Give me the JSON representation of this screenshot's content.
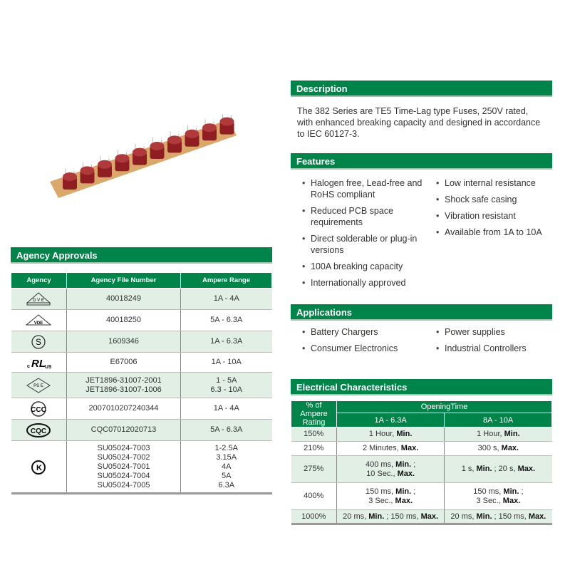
{
  "product_image": {
    "alt": "fuses on tape"
  },
  "description": {
    "title": "Description",
    "text": "The 382 Series are TE5 Time-Lag type Fuses, 250V rated, with enhanced breaking capacity and designed in accordance to IEC 60127-3."
  },
  "features": {
    "title": "Features",
    "col1": [
      "Halogen free, Lead-free and RoHS compliant",
      "Reduced PCB space requirements",
      "Direct solderable or plug-in versions",
      "100A breaking capacity",
      "Internationally approved"
    ],
    "col2": [
      "Low internal resistance",
      "Shock safe casing",
      "Vibration resistant",
      "Available from 1A to 10A"
    ]
  },
  "applications": {
    "title": "Applications",
    "col1": [
      "Battery Chargers",
      "Consumer Electronics"
    ],
    "col2": [
      "Power supplies",
      "Industrial Controllers"
    ]
  },
  "agency": {
    "title": "Agency Approvals",
    "headers": [
      "Agency",
      "Agency File Number",
      "Ampere Range"
    ],
    "rows": [
      {
        "icon": "vde-triangle-icon",
        "file": "40018249",
        "range": "1A - 4A"
      },
      {
        "icon": "vde-logo-icon",
        "file": "40018250",
        "range": "5A - 6.3A"
      },
      {
        "icon": "semko-s-icon",
        "file": "1609346",
        "range": "1A - 6.3A"
      },
      {
        "icon": "cul-us-icon",
        "file": "E67006",
        "range": "1A - 10A"
      },
      {
        "icon": "pse-diamond-icon",
        "file": "JET1896-31007-2001\nJET1896-31007-1006",
        "range": "1 - 5A\n6.3 - 10A"
      },
      {
        "icon": "ccc-icon",
        "file": "2007010207240344",
        "range": "1A - 4A"
      },
      {
        "icon": "cqc-icon",
        "file": "CQC07012020713",
        "range": "5A - 6.3A"
      },
      {
        "icon": "kc-icon",
        "file": "SU05024-7003\nSU05024-7002\nSU05024-7001\nSU05024-7004\nSU05024-7005",
        "range": "1-2.5A\n3.15A\n4A\n5A\n6.3A"
      }
    ]
  },
  "electrical": {
    "title": "Electrical Characteristics",
    "col0": "% of Ampere Rating",
    "group": "OpeningTime",
    "col1": "1A - 6.3A",
    "col2": "8A - 10A",
    "rows": [
      {
        "pct": "150%",
        "a": [
          [
            "1 Hour, ",
            0
          ],
          [
            "Min.",
            1
          ]
        ],
        "b": [
          [
            "1 Hour, ",
            0
          ],
          [
            "Min.",
            1
          ]
        ]
      },
      {
        "pct": "210%",
        "a": [
          [
            "2 Minutes, ",
            0
          ],
          [
            "Max.",
            1
          ]
        ],
        "b": [
          [
            "300 s, ",
            0
          ],
          [
            "Max.",
            1
          ]
        ]
      },
      {
        "pct": "275%",
        "a": [
          [
            "400 ms, ",
            0
          ],
          [
            "Min.",
            1
          ],
          [
            " ;\n10 Sec., ",
            0
          ],
          [
            "Max.",
            1
          ]
        ],
        "b": [
          [
            "1 s, ",
            0
          ],
          [
            "Min.",
            1
          ],
          [
            " ; 20 s, ",
            0
          ],
          [
            "Max.",
            1
          ]
        ]
      },
      {
        "pct": "400%",
        "a": [
          [
            "150 ms, ",
            0
          ],
          [
            "Min.",
            1
          ],
          [
            " ;\n3 Sec., ",
            0
          ],
          [
            "Max.",
            1
          ]
        ],
        "b": [
          [
            "150 ms, ",
            0
          ],
          [
            "Min.",
            1
          ],
          [
            " ;\n3 Sec., ",
            0
          ],
          [
            "Max.",
            1
          ]
        ]
      },
      {
        "pct": "1000%",
        "a": [
          [
            "20 ms, ",
            0
          ],
          [
            "Min.",
            1
          ],
          [
            " ; 150 ms, ",
            0
          ],
          [
            "Max.",
            1
          ]
        ],
        "b": [
          [
            "20 ms, ",
            0
          ],
          [
            "Min.",
            1
          ],
          [
            " ; 150 ms, ",
            0
          ],
          [
            "Max.",
            1
          ]
        ]
      }
    ]
  },
  "colors": {
    "brand_green": "#00844a",
    "row_tint": "#e1efe5"
  }
}
